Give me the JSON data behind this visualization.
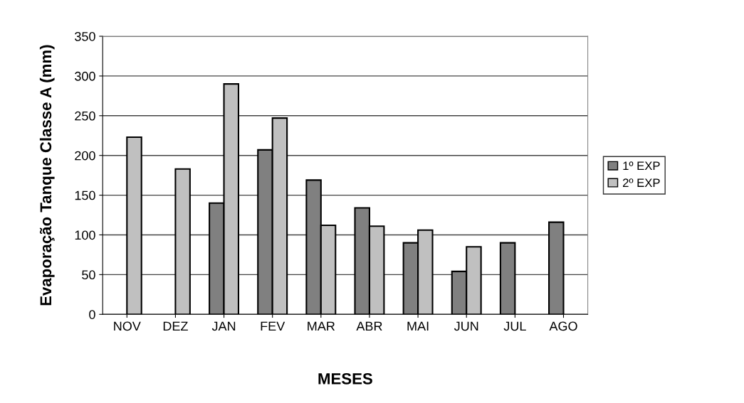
{
  "chart_data": {
    "type": "bar",
    "xlabel": "MESES",
    "ylabel": "Evaporação Tanque Classe A (mm)",
    "categories": [
      "NOV",
      "DEZ",
      "JAN",
      "FEV",
      "MAR",
      "ABR",
      "MAI",
      "JUN",
      "JUL",
      "AGO"
    ],
    "series": [
      {
        "name": "1º EXP",
        "color": "#808080",
        "values": [
          null,
          null,
          140,
          207,
          169,
          134,
          90,
          54,
          90,
          116
        ]
      },
      {
        "name": "2º EXP",
        "color": "#c0c0c0",
        "values": [
          223,
          183,
          290,
          247,
          112,
          111,
          106,
          85,
          null,
          null
        ]
      }
    ],
    "ylim": [
      0,
      350
    ],
    "yticks": [
      0,
      50,
      100,
      150,
      200,
      250,
      300,
      350
    ],
    "grid": "y",
    "legend": "right"
  }
}
